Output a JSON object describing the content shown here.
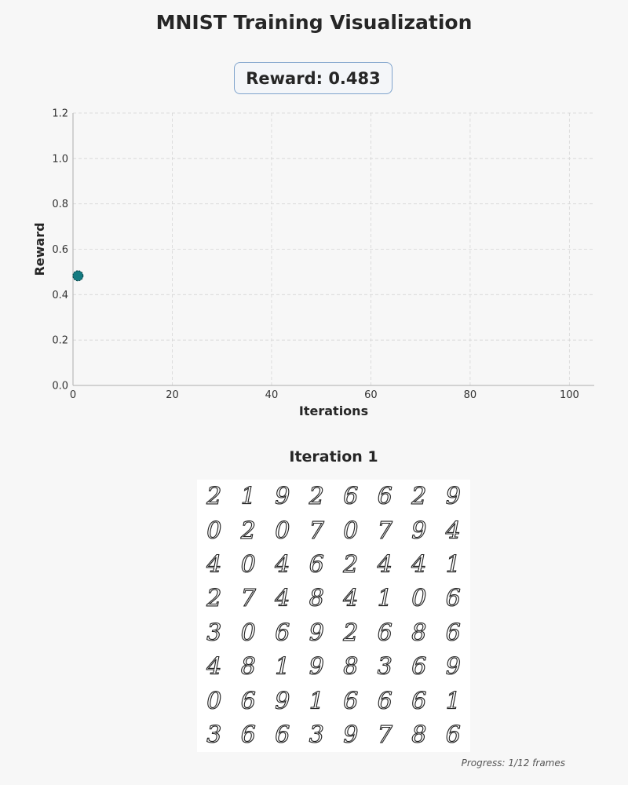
{
  "title": "MNIST Training Visualization",
  "reward_label": "Reward: 0.483",
  "chart_data": {
    "type": "scatter",
    "xlabel": "Iterations",
    "ylabel": "Reward",
    "xlim": [
      0,
      105
    ],
    "ylim": [
      0,
      1.2
    ],
    "x_ticks": [
      0,
      20,
      40,
      60,
      80,
      100
    ],
    "y_ticks": [
      "0.0",
      "0.2",
      "0.4",
      "0.6",
      "0.8",
      "1.0",
      "1.2"
    ],
    "grid": true,
    "points": [
      {
        "x": 1,
        "y": 0.483
      }
    ],
    "point_color": "#147a80"
  },
  "iteration_title": "Iteration 1",
  "digits": [
    [
      "2",
      "1",
      "9",
      "2",
      "6",
      "6",
      "2",
      "9"
    ],
    [
      "0",
      "2",
      "0",
      "7",
      "0",
      "7",
      "9",
      "4"
    ],
    [
      "4",
      "0",
      "4",
      "6",
      "2",
      "4",
      "4",
      "1"
    ],
    [
      "2",
      "7",
      "4",
      "8",
      "4",
      "1",
      "0",
      "6"
    ],
    [
      "3",
      "0",
      "6",
      "9",
      "2",
      "6",
      "8",
      "6"
    ],
    [
      "4",
      "8",
      "1",
      "9",
      "8",
      "3",
      "6",
      "9"
    ],
    [
      "0",
      "6",
      "9",
      "1",
      "6",
      "6",
      "6",
      "1"
    ],
    [
      "3",
      "6",
      "6",
      "3",
      "9",
      "7",
      "8",
      "6"
    ]
  ],
  "progress": "Progress: 1/12 frames"
}
